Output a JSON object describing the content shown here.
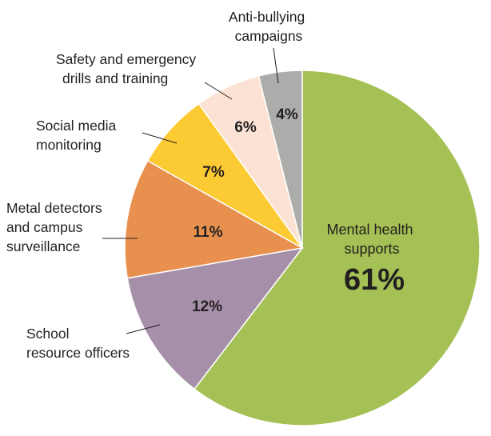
{
  "chart_data": {
    "type": "pie",
    "title": "",
    "slices": [
      {
        "key": "mental",
        "label": "Mental health supports",
        "label_lines": [
          "Mental health",
          "supports"
        ],
        "value": 61,
        "value_label": "61%",
        "color": "#a5c155"
      },
      {
        "key": "sro",
        "label": "School resource officers",
        "label_lines": [
          "School",
          "resource officers"
        ],
        "value": 12,
        "value_label": "12%",
        "color": "#a68fa9"
      },
      {
        "key": "metal",
        "label": "Metal detectors and campus surveillance",
        "label_lines": [
          "Metal detectors",
          "and campus",
          "surveillance"
        ],
        "value": 11,
        "value_label": "11%",
        "color": "#e8914f"
      },
      {
        "key": "social",
        "label": "Social media monitoring",
        "label_lines": [
          "Social media",
          "monitoring"
        ],
        "value": 7,
        "value_label": "7%",
        "color": "#fcca33"
      },
      {
        "key": "drills",
        "label": "Safety and emergency drills and training",
        "label_lines": [
          "Safety and emergency",
          "drills and training"
        ],
        "value": 6,
        "value_label": "6%",
        "color": "#fbe2d4"
      },
      {
        "key": "anti",
        "label": "Anti-bullying campaigns",
        "label_lines": [
          "Anti-bullying",
          "campaigns"
        ],
        "value": 4,
        "value_label": "4%",
        "color": "#acacab"
      }
    ]
  }
}
